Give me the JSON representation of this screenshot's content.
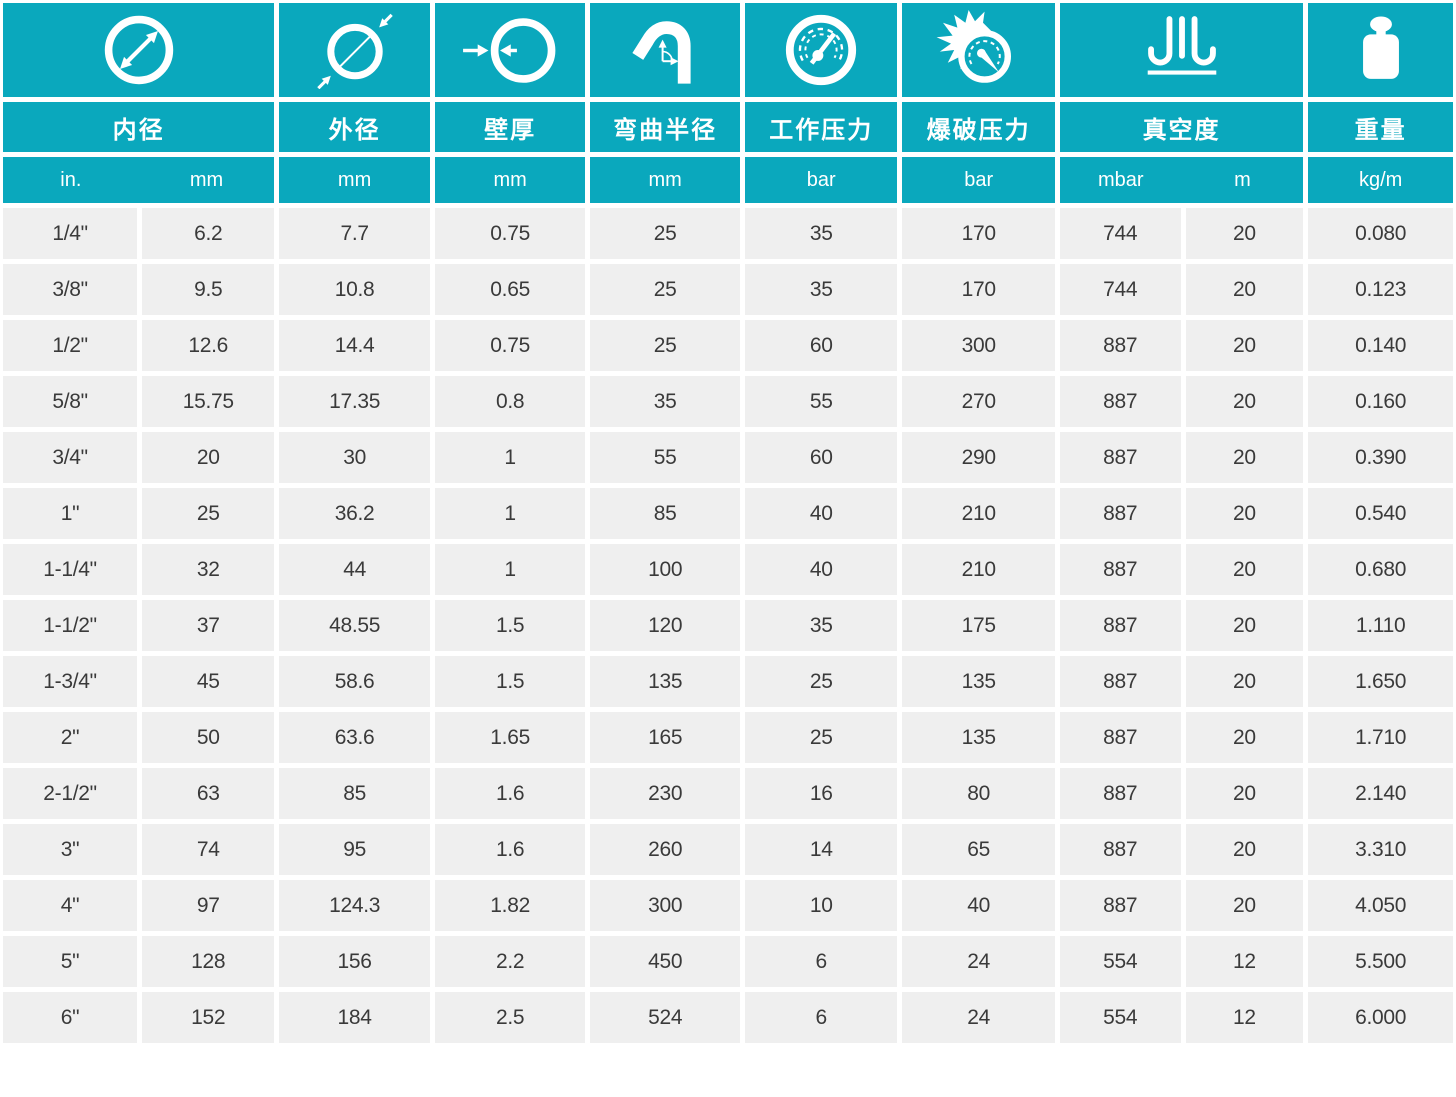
{
  "chart_data": {
    "type": "table",
    "columns": [
      {
        "id": "inner_diameter",
        "label": "内径",
        "icon": "inner-diameter-icon",
        "units": [
          "in.",
          "mm"
        ]
      },
      {
        "id": "outer_diameter",
        "label": "外径",
        "icon": "outer-diameter-icon",
        "units": [
          "mm"
        ]
      },
      {
        "id": "wall_thickness",
        "label": "壁厚",
        "icon": "wall-thickness-icon",
        "units": [
          "mm"
        ]
      },
      {
        "id": "bend_radius",
        "label": "弯曲半径",
        "icon": "bend-radius-icon",
        "units": [
          "mm"
        ]
      },
      {
        "id": "working_pressure",
        "label": "工作压力",
        "icon": "pressure-gauge-icon",
        "units": [
          "bar"
        ]
      },
      {
        "id": "burst_pressure",
        "label": "爆破压力",
        "icon": "burst-pressure-icon",
        "units": [
          "bar"
        ]
      },
      {
        "id": "vacuum",
        "label": "真空度",
        "icon": "vacuum-icon",
        "units": [
          "mbar",
          "m"
        ]
      },
      {
        "id": "weight",
        "label": "重量",
        "icon": "weight-icon",
        "units": [
          "kg/m"
        ]
      }
    ],
    "rows": [
      [
        "1/4\"",
        "6.2",
        "7.7",
        "0.75",
        "25",
        "35",
        "170",
        "744",
        "20",
        "0.080"
      ],
      [
        "3/8\"",
        "9.5",
        "10.8",
        "0.65",
        "25",
        "35",
        "170",
        "744",
        "20",
        "0.123"
      ],
      [
        "1/2\"",
        "12.6",
        "14.4",
        "0.75",
        "25",
        "60",
        "300",
        "887",
        "20",
        "0.140"
      ],
      [
        "5/8\"",
        "15.75",
        "17.35",
        "0.8",
        "35",
        "55",
        "270",
        "887",
        "20",
        "0.160"
      ],
      [
        "3/4\"",
        "20",
        "30",
        "1",
        "55",
        "60",
        "290",
        "887",
        "20",
        "0.390"
      ],
      [
        "1\"",
        "25",
        "36.2",
        "1",
        "85",
        "40",
        "210",
        "887",
        "20",
        "0.540"
      ],
      [
        "1-1/4\"",
        "32",
        "44",
        "1",
        "100",
        "40",
        "210",
        "887",
        "20",
        "0.680"
      ],
      [
        "1-1/2\"",
        "37",
        "48.55",
        "1.5",
        "120",
        "35",
        "175",
        "887",
        "20",
        "1.110"
      ],
      [
        "1-3/4\"",
        "45",
        "58.6",
        "1.5",
        "135",
        "25",
        "135",
        "887",
        "20",
        "1.650"
      ],
      [
        "2\"",
        "50",
        "63.6",
        "1.65",
        "165",
        "25",
        "135",
        "887",
        "20",
        "1.710"
      ],
      [
        "2-1/2\"",
        "63",
        "85",
        "1.6",
        "230",
        "16",
        "80",
        "887",
        "20",
        "2.140"
      ],
      [
        "3\"",
        "74",
        "95",
        "1.6",
        "260",
        "14",
        "65",
        "887",
        "20",
        "3.310"
      ],
      [
        "4\"",
        "97",
        "124.3",
        "1.82",
        "300",
        "10",
        "40",
        "887",
        "20",
        "4.050"
      ],
      [
        "5\"",
        "128",
        "156",
        "2.2",
        "450",
        "6",
        "24",
        "554",
        "12",
        "5.500"
      ],
      [
        "6\"",
        "152",
        "184",
        "2.5",
        "524",
        "6",
        "24",
        "554",
        "12",
        "6.000"
      ]
    ]
  },
  "colors": {
    "header_teal": "#0aa8bd",
    "row_background": "#efefef",
    "cell_text": "#3a3a3a",
    "background": "#ffffff"
  }
}
